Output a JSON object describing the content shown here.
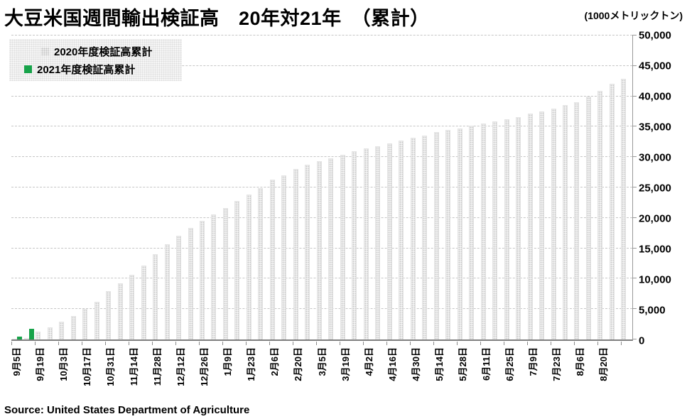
{
  "chart_data": {
    "type": "bar",
    "title": "大豆米国週間輸出検証高　20年対21年　（累計）",
    "unit_label": "(1000メトリックトン)",
    "source": "Source: United States Department of Agriculture",
    "ylim": [
      0,
      50000
    ],
    "ytick_step": 5000,
    "ytick_values": [
      0,
      5000,
      10000,
      15000,
      20000,
      25000,
      30000,
      35000,
      40000,
      45000,
      50000
    ],
    "ytick_labels": [
      "0",
      "5,000",
      "10,000",
      "15,000",
      "20,000",
      "25,000",
      "30,000",
      "35,000",
      "40,000",
      "45,000",
      "50,000"
    ],
    "weeks": 53,
    "x_tick_labels": [
      "9月5日",
      "9月19日",
      "10月3日",
      "10月17日",
      "10月31日",
      "11月14日",
      "11月28日",
      "12月12日",
      "12月26日",
      "1月9日",
      "1月23日",
      "2月6日",
      "2月20日",
      "3月5日",
      "3月19日",
      "4月2日",
      "4月16日",
      "4月30日",
      "5月14日",
      "5月28日",
      "6月11日",
      "6月25日",
      "7月9日",
      "7月23日",
      "8月6日",
      "8月20日"
    ],
    "grid": "horizontal-dashed",
    "legend_position": "top-left",
    "series": [
      {
        "name": "2020年度検証高累計",
        "color": "#e2e2e2",
        "fill": "dotted-gray-pattern",
        "values": [
          60,
          250,
          1250,
          2000,
          2900,
          3900,
          5000,
          6200,
          7900,
          9200,
          10600,
          12200,
          14000,
          15700,
          17100,
          18400,
          19500,
          20600,
          21600,
          22800,
          23800,
          24900,
          26300,
          27000,
          28000,
          28700,
          29300,
          29800,
          30400,
          31000,
          31400,
          31800,
          32200,
          32700,
          33200,
          33500,
          34100,
          34500,
          34700,
          35150,
          35500,
          35850,
          36200,
          36600,
          37100,
          37550,
          38000,
          38500,
          39050,
          39900,
          40900,
          42100,
          42900
        ]
      },
      {
        "name": "2021年度検証高累計",
        "color": "#17a34a",
        "fill": "solid-green",
        "values": [
          500,
          1700,
          0,
          0,
          0,
          0,
          0,
          0,
          0,
          0,
          0,
          0,
          0,
          0,
          0,
          0,
          0,
          0,
          0,
          0,
          0,
          0,
          0,
          0,
          0,
          0,
          0,
          0,
          0,
          0,
          0,
          0,
          0,
          0,
          0,
          0,
          0,
          0,
          0,
          0,
          0,
          0,
          0,
          0,
          0,
          0,
          0,
          0,
          0,
          0,
          0,
          0,
          0
        ]
      }
    ]
  }
}
